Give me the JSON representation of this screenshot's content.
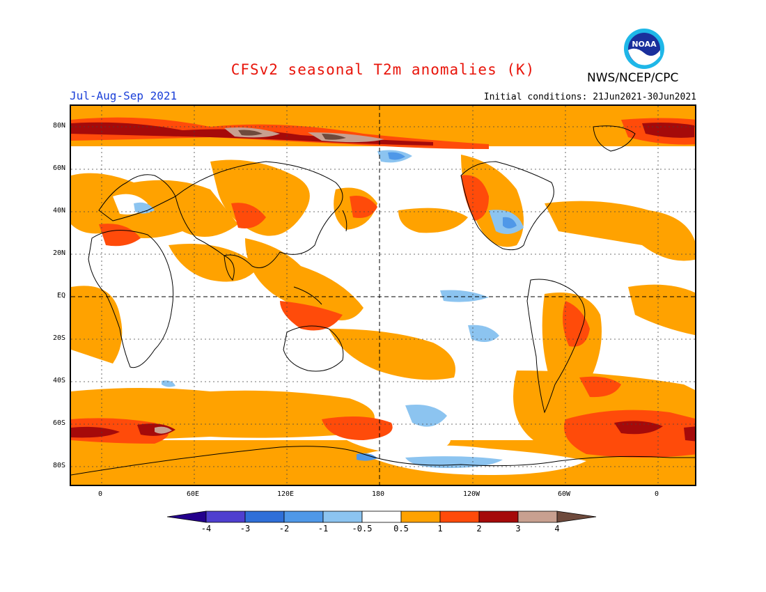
{
  "title": "CFSv2 seasonal T2m anomalies (K)",
  "period": "Jul-Aug-Sep 2021",
  "agency": "NWS/NCEP/CPC",
  "initial_conditions": "Initial conditions: 21Jun2021-30Jun2021",
  "logo_text": "NOAA",
  "lat_labels": [
    "80N",
    "60N",
    "40N",
    "20N",
    "EQ",
    "20S",
    "40S",
    "60S",
    "80S"
  ],
  "lon_labels": [
    "0",
    "60E",
    "120E",
    "180",
    "120W",
    "60W",
    "0"
  ],
  "colorbar": {
    "labels": [
      "-4",
      "-3",
      "-2",
      "-1",
      "-0.5",
      "0.5",
      "1",
      "2",
      "3",
      "4"
    ],
    "colors": [
      "#24008c",
      "#4f3fcf",
      "#2f6fd8",
      "#4f98e8",
      "#8cc4f0",
      "#ffffff",
      "#ffa200",
      "#ff4b0a",
      "#a50a0a",
      "#c8a090",
      "#6e4a3c"
    ]
  }
}
